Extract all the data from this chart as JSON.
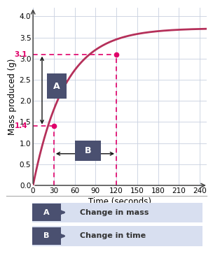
{
  "xlabel": "Time (seconds)",
  "ylabel": "Mass produced (g)",
  "xlim": [
    0,
    250
  ],
  "ylim": [
    0,
    4.2
  ],
  "xticks": [
    0,
    30,
    60,
    90,
    120,
    150,
    180,
    210,
    240
  ],
  "yticks": [
    0.0,
    0.5,
    1.0,
    1.5,
    2.0,
    2.5,
    3.0,
    3.5,
    4.0
  ],
  "curve_color": "#b5305a",
  "curve_asymptote": 3.72,
  "curve_rate": 0.022,
  "point1_x": 30,
  "point1_y": 1.4,
  "point2_x": 120,
  "point2_y": 3.1,
  "dashed_color": "#e0006a",
  "label1": "1.4",
  "label2": "3.1",
  "arrow_color": "#111111",
  "box_color": "#4a5070",
  "legend_bg_color": "#d8dff0",
  "legend_label_A": "Change in mass",
  "legend_label_B": "Change in time",
  "bg_color": "#ffffff",
  "grid_color": "#c8d0df"
}
